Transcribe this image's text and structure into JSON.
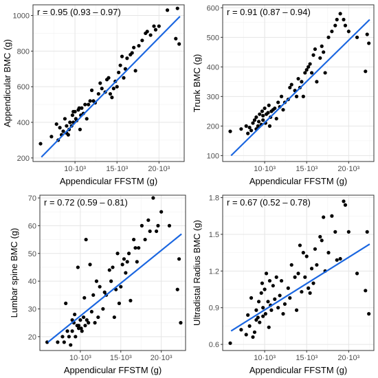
{
  "chart_data": [
    {
      "type": "scatter",
      "annotation": "r =  0.95 (0.93 – 0.97)",
      "xlabel": "Appendicular FFSTM (g)",
      "ylabel": "Appendicular BMC (g)",
      "xlim": [
        5000,
        23000
      ],
      "ylim": [
        180,
        1060
      ],
      "x_ticks": [
        {
          "value": 10000,
          "label": "10·10³"
        },
        {
          "value": 15000,
          "label": "15·10³"
        },
        {
          "value": 20000,
          "label": "20·10³"
        }
      ],
      "y_ticks": [
        200,
        400,
        600,
        800,
        1000
      ],
      "grid": true,
      "colors": {
        "points": "#000000",
        "fit_line": "#1a66e0"
      },
      "fit_line": {
        "x": [
          6000,
          22500
        ],
        "y": [
          205,
          995
        ]
      },
      "series": [
        {
          "x": [
            5900,
            7200,
            7800,
            8000,
            8200,
            8400,
            8600,
            8800,
            9000,
            9000,
            9200,
            9300,
            9400,
            9600,
            9700,
            9800,
            9800,
            10000,
            10100,
            10200,
            10400,
            10500,
            10600,
            10700,
            10800,
            11000,
            11200,
            11400,
            11600,
            11800,
            12000,
            12200,
            12400,
            12800,
            13000,
            13200,
            13600,
            13800,
            14000,
            14200,
            14400,
            14600,
            14800,
            15000,
            15200,
            15400,
            15600,
            15800,
            16000,
            16200,
            16600,
            16800,
            17000,
            17200,
            17600,
            18000,
            18400,
            18600,
            19000,
            19400,
            19600,
            20000,
            21000,
            22000,
            22200,
            22400
          ],
          "y": [
            280,
            320,
            390,
            300,
            370,
            330,
            350,
            420,
            340,
            380,
            330,
            360,
            400,
            380,
            440,
            460,
            400,
            460,
            420,
            410,
            470,
            480,
            360,
            440,
            480,
            450,
            500,
            420,
            500,
            520,
            580,
            520,
            510,
            560,
            620,
            590,
            570,
            640,
            650,
            560,
            540,
            590,
            630,
            600,
            680,
            720,
            770,
            650,
            700,
            760,
            780,
            790,
            820,
            690,
            830,
            860,
            900,
            910,
            890,
            940,
            920,
            940,
            1030,
            870,
            1040,
            840
          ]
        }
      ]
    },
    {
      "type": "scatter",
      "annotation": "r =  0.91 (0.87 – 0.94)",
      "xlabel": "Appendicular FFSTM (g)",
      "ylabel": "Trunk BMC (g)",
      "xlim": [
        5000,
        23000
      ],
      "ylim": [
        80,
        610
      ],
      "x_ticks": [
        {
          "value": 10000,
          "label": "10·10³"
        },
        {
          "value": 15000,
          "label": "15·10³"
        },
        {
          "value": 20000,
          "label": "20·10³"
        }
      ],
      "y_ticks": [
        100,
        200,
        300,
        400,
        500,
        600
      ],
      "grid": true,
      "colors": {
        "points": "#000000",
        "fit_line": "#1a66e0"
      },
      "fit_line": {
        "x": [
          6000,
          22500
        ],
        "y": [
          100,
          560
        ]
      },
      "series": [
        {
          "x": [
            5900,
            7200,
            7800,
            8000,
            8200,
            8400,
            8600,
            8800,
            9000,
            9000,
            9200,
            9300,
            9400,
            9600,
            9700,
            9800,
            9800,
            10000,
            10100,
            10200,
            10400,
            10500,
            10600,
            10700,
            10800,
            11000,
            11200,
            11400,
            11600,
            11800,
            12000,
            12200,
            12400,
            12800,
            13000,
            13200,
            13600,
            13800,
            14000,
            14200,
            14400,
            14600,
            14800,
            15000,
            15200,
            15400,
            15600,
            15800,
            16000,
            16200,
            16600,
            16800,
            17000,
            17200,
            17600,
            18000,
            18400,
            18600,
            19000,
            19400,
            19600,
            20000,
            21000,
            22000,
            22200,
            22400
          ],
          "y": [
            182,
            190,
            200,
            175,
            195,
            185,
            210,
            220,
            190,
            230,
            200,
            215,
            240,
            205,
            250,
            235,
            220,
            260,
            210,
            240,
            245,
            270,
            200,
            230,
            250,
            255,
            260,
            225,
            280,
            265,
            300,
            255,
            280,
            290,
            330,
            340,
            320,
            300,
            360,
            330,
            350,
            300,
            380,
            390,
            400,
            410,
            380,
            440,
            460,
            350,
            430,
            470,
            450,
            380,
            500,
            520,
            540,
            560,
            580,
            560,
            540,
            520,
            500,
            385,
            510,
            480
          ]
        }
      ]
    },
    {
      "type": "scatter",
      "annotation": "r =  0.72 (0.59 – 0.81)",
      "xlabel": "Appendicular FFSTM (g)",
      "ylabel": "Lumbar spine BMC (g)",
      "xlim": [
        5000,
        23000
      ],
      "ylim": [
        15,
        71
      ],
      "x_ticks": [
        {
          "value": 10000,
          "label": "10·10³"
        },
        {
          "value": 15000,
          "label": "15·10³"
        },
        {
          "value": 20000,
          "label": "20·10³"
        }
      ],
      "y_ticks": [
        20,
        30,
        40,
        50,
        60,
        70
      ],
      "grid": true,
      "colors": {
        "points": "#000000",
        "fit_line": "#1a66e0"
      },
      "fit_line": {
        "x": [
          6000,
          22500
        ],
        "y": [
          18,
          57
        ]
      },
      "series": [
        {
          "x": [
            5900,
            7200,
            7800,
            8000,
            8200,
            8400,
            8600,
            8800,
            9000,
            9000,
            9200,
            9300,
            9400,
            9600,
            9700,
            9800,
            9800,
            10000,
            10100,
            10200,
            10400,
            10500,
            10600,
            10700,
            10800,
            11000,
            11200,
            11400,
            11600,
            11800,
            12000,
            12200,
            12400,
            12800,
            13000,
            13200,
            13600,
            13800,
            14000,
            14200,
            14400,
            14600,
            14800,
            15000,
            15200,
            15400,
            15600,
            15800,
            16000,
            16200,
            16600,
            16800,
            17000,
            17200,
            17600,
            18000,
            18400,
            18600,
            19000,
            19400,
            19600,
            20000,
            21000,
            22000,
            22200,
            22400
          ],
          "y": [
            18,
            18,
            20,
            18,
            32,
            22,
            20,
            17,
            26,
            22,
            25,
            28,
            20,
            24,
            45,
            24,
            23,
            26,
            23,
            22,
            27,
            34,
            24,
            55,
            26,
            25,
            46,
            29,
            35,
            25,
            40,
            27,
            38,
            30,
            36,
            35,
            44,
            40,
            45,
            27,
            37,
            50,
            32,
            38,
            46,
            48,
            43,
            47,
            50,
            33,
            55,
            52,
            47,
            52,
            60,
            55,
            62,
            58,
            70,
            58,
            60,
            65,
            60,
            37,
            48,
            25
          ]
        }
      ]
    },
    {
      "type": "scatter",
      "annotation": "r =  0.67 (0.52 – 0.78)",
      "xlabel": "Appendicular FFSTM (g)",
      "ylabel": "Ultradistal Radius BMC (g)",
      "xlim": [
        5000,
        23000
      ],
      "ylim": [
        0.55,
        1.82
      ],
      "x_ticks": [
        {
          "value": 10000,
          "label": "10·10³"
        },
        {
          "value": 15000,
          "label": "15·10³"
        },
        {
          "value": 20000,
          "label": "20·10³"
        }
      ],
      "y_ticks": [
        {
          "value": 0.6,
          "label": "0.6"
        },
        {
          "value": 0.9,
          "label": "0.9"
        },
        {
          "value": 1.2,
          "label": "1.2"
        },
        {
          "value": 1.5,
          "label": "1.5"
        },
        {
          "value": 1.8,
          "label": "1.8"
        }
      ],
      "grid": true,
      "colors": {
        "points": "#000000",
        "fit_line": "#1a66e0"
      },
      "fit_line": {
        "x": [
          6000,
          22500
        ],
        "y": [
          0.71,
          1.42
        ]
      },
      "series": [
        {
          "x": [
            5900,
            7200,
            7800,
            8000,
            8200,
            8400,
            8600,
            8800,
            9000,
            9000,
            9200,
            9300,
            9400,
            9600,
            9700,
            9800,
            9800,
            10000,
            10100,
            10200,
            10400,
            10500,
            10600,
            10700,
            10800,
            11000,
            11200,
            11400,
            11600,
            11800,
            12000,
            12200,
            12400,
            12800,
            13000,
            13200,
            13600,
            13800,
            14000,
            14200,
            14400,
            14600,
            14800,
            15000,
            15200,
            15400,
            15600,
            15800,
            16000,
            16200,
            16600,
            16800,
            17000,
            17200,
            17600,
            18000,
            18400,
            18600,
            19000,
            19400,
            19600,
            20000,
            21000,
            22000,
            22200,
            22400
          ],
          "y": [
            0.61,
            0.72,
            0.68,
            0.84,
            0.75,
            0.98,
            0.66,
            0.7,
            0.88,
            0.8,
            0.82,
            0.95,
            0.78,
            1.02,
            1.1,
            0.83,
            0.9,
            1.05,
            0.85,
            1.18,
            0.95,
            0.74,
            1.12,
            0.92,
            0.88,
            1.08,
            0.97,
            1.15,
            0.9,
            1.0,
            1.12,
            0.85,
            0.93,
            1.06,
            0.98,
            1.25,
            1.15,
            0.88,
            1.18,
            1.41,
            1.03,
            1.35,
            1.15,
            1.32,
            1.06,
            1.02,
            1.22,
            1.1,
            1.38,
            1.25,
            1.48,
            1.45,
            1.64,
            1.2,
            1.35,
            1.65,
            1.52,
            1.29,
            1.3,
            1.77,
            1.74,
            1.52,
            1.18,
            1.04,
            1.52,
            0.85
          ]
        }
      ]
    }
  ]
}
